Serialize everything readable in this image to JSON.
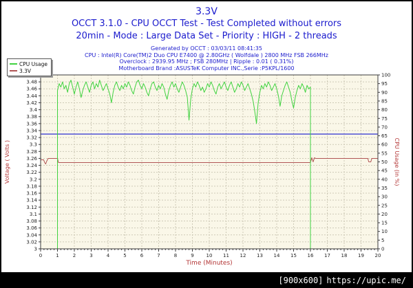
{
  "header": {
    "title": "3.3V",
    "subtitle1": "OCCT 3.1.0 - CPU OCCT Test - Test Completed without errors",
    "subtitle2": "20min - Mode : Large Data Set - Priority : HIGH - 2 threads",
    "info1": "Generated by OCCT : 03/03/11 08:41:35",
    "info2": "CPU : Intel(R) Core(TM)2 Duo CPU E7400 @ 2.80GHz ( Wolfdale ) 2800 MHz FSB 266MHz",
    "info3": "Overclock : 2939.95 MHz ; FSB 280MHz | Ripple : 0.01 ( 0.31%)",
    "info4": "Motherboard Brand :ASUSTeK Computer INC.,Serie :P5KPL/1600"
  },
  "legend": {
    "items": [
      {
        "label": "CPU Usage",
        "color": "#3fd23f"
      },
      {
        "label": "3.3V",
        "color": "#b05454"
      }
    ]
  },
  "watermark": {
    "size": "[900x600]",
    "url": "https://upic.me/"
  },
  "chart_data": {
    "type": "line",
    "title": "3.3V",
    "xlabel": "Time (Minutes)",
    "ylabel_left": "Voltage ( Volts )",
    "ylabel_right": "CPU Usage (in %)",
    "x_range": [
      0,
      20
    ],
    "x_tick_step": 1,
    "x_minor_step": 0.2,
    "y_left_range": [
      3.0,
      3.5
    ],
    "y_left_tick_step": 0.02,
    "y_right_range": [
      0,
      100
    ],
    "y_right_tick_step": 5,
    "grid": true,
    "colors": {
      "plot_bg": "#faf7e8",
      "grid": "#cdc9b6",
      "frame": "#3a3a3a",
      "tick_label": "#222222",
      "axis_title": "#b23333",
      "title_blue": "#1a1acd"
    },
    "series": [
      {
        "name": "3.33V reference line",
        "axis": "left",
        "color": "#5b5bd6",
        "width": 1.6,
        "points": [
          [
            0,
            3.33
          ],
          [
            20,
            3.33
          ]
        ]
      },
      {
        "name": "3.3V",
        "axis": "left",
        "color": "#b05454",
        "width": 1,
        "points": [
          [
            0,
            3.256
          ],
          [
            0.18,
            3.256
          ],
          [
            0.24,
            3.248
          ],
          [
            0.3,
            3.244
          ],
          [
            0.36,
            3.252
          ],
          [
            0.45,
            3.26
          ],
          [
            1.0,
            3.26
          ],
          [
            1.06,
            3.248
          ],
          [
            16.0,
            3.248
          ],
          [
            16.08,
            3.262
          ],
          [
            16.16,
            3.25
          ],
          [
            16.24,
            3.262
          ],
          [
            16.3,
            3.26
          ],
          [
            19.4,
            3.26
          ],
          [
            19.46,
            3.25
          ],
          [
            19.58,
            3.25
          ],
          [
            19.64,
            3.26
          ],
          [
            20,
            3.26
          ]
        ]
      },
      {
        "name": "CPU Usage",
        "axis": "right",
        "color": "#3fd23f",
        "width": 1,
        "lead": [
          [
            0,
            0
          ],
          [
            1,
            0
          ]
        ],
        "start_t": 1.0,
        "dt": 0.1,
        "values": [
          91,
          95,
          93,
          96,
          92,
          94,
          90,
          95,
          97,
          93,
          89,
          93,
          96,
          92,
          87,
          91,
          94,
          96,
          93,
          90,
          94,
          96,
          92,
          95,
          93,
          97,
          94,
          91,
          93,
          95,
          92,
          89,
          84,
          90,
          94,
          96,
          93,
          91,
          94,
          92,
          95,
          93,
          96,
          94,
          91,
          89,
          93,
          96,
          97,
          94,
          92,
          95,
          93,
          90,
          88,
          92,
          95,
          96,
          93,
          91,
          94,
          92,
          95,
          93,
          89,
          86,
          91,
          94,
          96,
          93,
          95,
          92,
          90,
          93,
          96,
          94,
          91,
          87,
          74,
          86,
          92,
          95,
          93,
          96,
          94,
          91,
          93,
          90,
          92,
          95,
          93,
          96,
          94,
          91,
          89,
          93,
          95,
          92,
          94,
          96,
          93,
          91,
          94,
          96,
          93,
          90,
          92,
          95,
          93,
          96,
          94,
          91,
          93,
          95,
          92,
          89,
          85,
          79,
          72,
          84,
          90,
          94,
          92,
          95,
          93,
          96,
          94,
          91,
          93,
          95,
          92,
          88,
          82,
          88,
          91,
          94,
          96,
          93,
          90,
          85,
          81,
          87,
          91,
          94,
          92,
          95,
          93,
          90,
          94,
          92,
          93
        ],
        "tail": [
          [
            16,
            0
          ],
          [
            20,
            0
          ]
        ]
      }
    ]
  }
}
